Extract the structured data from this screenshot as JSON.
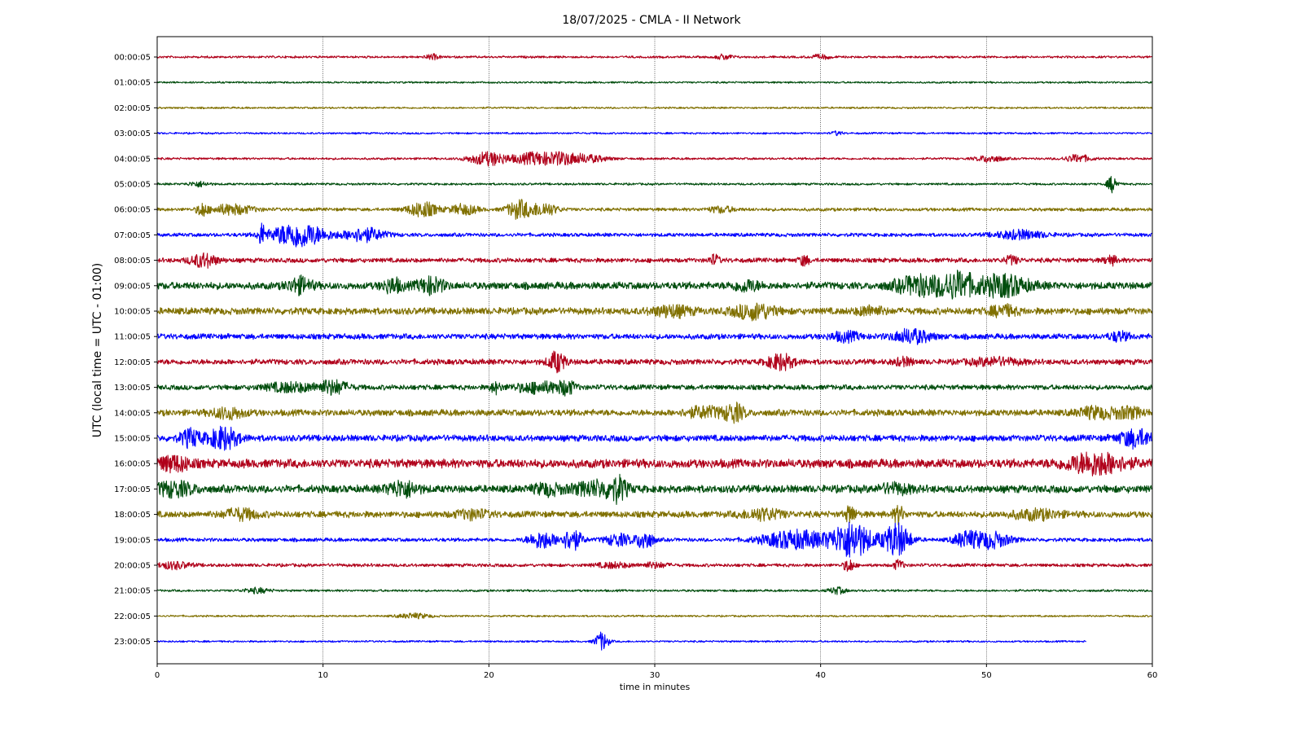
{
  "chart_data": {
    "type": "line",
    "title": "18/07/2025 - CMLA - II Network",
    "xlabel": "time in minutes",
    "ylabel": "UTC (local time = UTC - 01:00)",
    "xlim": [
      0,
      60
    ],
    "xticks": [
      0,
      10,
      20,
      30,
      40,
      50,
      60
    ],
    "grid_x": true,
    "grid_y": false,
    "row_labels": [
      "00:00:05",
      "01:00:05",
      "02:00:05",
      "03:00:05",
      "04:00:05",
      "05:00:05",
      "06:00:05",
      "07:00:05",
      "08:00:05",
      "09:00:05",
      "10:00:05",
      "11:00:05",
      "12:00:05",
      "13:00:05",
      "14:00:05",
      "15:00:05",
      "16:00:05",
      "17:00:05",
      "18:00:05",
      "19:00:05",
      "20:00:05",
      "21:00:05",
      "22:00:05",
      "23:00:05"
    ],
    "row_colors": [
      "#b0001a",
      "#004d0d",
      "#807000",
      "#0000ff"
    ],
    "last_row_end_minute": 56,
    "series": [
      {
        "label": "00:00:05",
        "base_amplitude": 0.12,
        "events": [
          {
            "t": 16.6,
            "amp": 0.3,
            "dur": 0.4
          },
          {
            "t": 34.2,
            "amp": 0.3,
            "dur": 0.5
          },
          {
            "t": 40.0,
            "amp": 0.25,
            "dur": 0.6
          }
        ]
      },
      {
        "label": "01:00:05",
        "base_amplitude": 0.1,
        "events": []
      },
      {
        "label": "02:00:05",
        "base_amplitude": 0.1,
        "events": []
      },
      {
        "label": "03:00:05",
        "base_amplitude": 0.1,
        "events": [
          {
            "t": 41.0,
            "amp": 0.25,
            "dur": 0.3
          }
        ]
      },
      {
        "label": "04:00:05",
        "base_amplitude": 0.12,
        "events": [
          {
            "t": 20.0,
            "amp": 0.8,
            "dur": 1.2
          },
          {
            "t": 22.5,
            "amp": 0.6,
            "dur": 1.0
          },
          {
            "t": 24.2,
            "amp": 0.7,
            "dur": 1.2
          },
          {
            "t": 26.0,
            "amp": 0.4,
            "dur": 1.2
          },
          {
            "t": 50.2,
            "amp": 0.4,
            "dur": 0.8
          },
          {
            "t": 55.5,
            "amp": 0.45,
            "dur": 0.8
          }
        ]
      },
      {
        "label": "05:00:05",
        "base_amplitude": 0.12,
        "events": [
          {
            "t": 2.5,
            "amp": 0.3,
            "dur": 0.6
          },
          {
            "t": 57.6,
            "amp": 1.0,
            "dur": 0.3
          }
        ]
      },
      {
        "label": "06:00:05",
        "base_amplitude": 0.18,
        "events": [
          {
            "t": 2.7,
            "amp": 0.8,
            "dur": 0.3
          },
          {
            "t": 4.5,
            "amp": 0.6,
            "dur": 1.3
          },
          {
            "t": 16.0,
            "amp": 0.9,
            "dur": 0.9
          },
          {
            "t": 18.5,
            "amp": 0.6,
            "dur": 0.8
          },
          {
            "t": 21.8,
            "amp": 1.1,
            "dur": 0.7
          },
          {
            "t": 23.3,
            "amp": 0.8,
            "dur": 0.8
          },
          {
            "t": 34.0,
            "amp": 0.35,
            "dur": 0.8
          }
        ]
      },
      {
        "label": "07:00:05",
        "base_amplitude": 0.2,
        "events": [
          {
            "t": 6.3,
            "amp": 1.2,
            "dur": 0.2
          },
          {
            "t": 8.5,
            "amp": 1.5,
            "dur": 1.6
          },
          {
            "t": 12.5,
            "amp": 0.8,
            "dur": 1.2
          },
          {
            "t": 52.0,
            "amp": 0.5,
            "dur": 1.5
          }
        ]
      },
      {
        "label": "08:00:05",
        "base_amplitude": 0.25,
        "events": [
          {
            "t": 2.8,
            "amp": 0.8,
            "dur": 0.8
          },
          {
            "t": 33.6,
            "amp": 0.6,
            "dur": 0.3
          },
          {
            "t": 39.0,
            "amp": 0.6,
            "dur": 0.3
          },
          {
            "t": 51.5,
            "amp": 0.5,
            "dur": 0.4
          },
          {
            "t": 57.5,
            "amp": 0.5,
            "dur": 0.4
          }
        ]
      },
      {
        "label": "09:00:05",
        "base_amplitude": 0.4,
        "events": [
          {
            "t": 8.6,
            "amp": 0.9,
            "dur": 0.7
          },
          {
            "t": 14.2,
            "amp": 0.8,
            "dur": 0.6
          },
          {
            "t": 16.5,
            "amp": 0.9,
            "dur": 0.8
          },
          {
            "t": 35.5,
            "amp": 0.6,
            "dur": 0.8
          },
          {
            "t": 46.0,
            "amp": 1.1,
            "dur": 1.5
          },
          {
            "t": 48.3,
            "amp": 1.4,
            "dur": 1.1
          },
          {
            "t": 51.0,
            "amp": 1.2,
            "dur": 1.5
          }
        ]
      },
      {
        "label": "10:00:05",
        "base_amplitude": 0.38,
        "events": [
          {
            "t": 31.0,
            "amp": 0.6,
            "dur": 1.2
          },
          {
            "t": 36.0,
            "amp": 0.9,
            "dur": 1.2
          },
          {
            "t": 43.0,
            "amp": 0.5,
            "dur": 0.8
          },
          {
            "t": 51.0,
            "amp": 0.6,
            "dur": 0.8
          }
        ]
      },
      {
        "label": "11:00:05",
        "base_amplitude": 0.3,
        "events": [
          {
            "t": 41.5,
            "amp": 0.5,
            "dur": 0.9
          },
          {
            "t": 45.5,
            "amp": 0.8,
            "dur": 1.1
          },
          {
            "t": 58.0,
            "amp": 0.5,
            "dur": 0.6
          }
        ]
      },
      {
        "label": "12:00:05",
        "base_amplitude": 0.3,
        "events": [
          {
            "t": 24.1,
            "amp": 1.2,
            "dur": 0.5
          },
          {
            "t": 37.6,
            "amp": 0.9,
            "dur": 0.8
          },
          {
            "t": 45.0,
            "amp": 0.4,
            "dur": 0.6
          },
          {
            "t": 50.5,
            "amp": 0.4,
            "dur": 1.5
          }
        ]
      },
      {
        "label": "13:00:05",
        "base_amplitude": 0.28,
        "events": [
          {
            "t": 8.0,
            "amp": 0.5,
            "dur": 1.5
          },
          {
            "t": 10.6,
            "amp": 0.8,
            "dur": 0.9
          },
          {
            "t": 20.4,
            "amp": 0.6,
            "dur": 0.3
          },
          {
            "t": 23.0,
            "amp": 0.6,
            "dur": 1.5
          },
          {
            "t": 24.7,
            "amp": 0.7,
            "dur": 0.5
          }
        ]
      },
      {
        "label": "14:00:05",
        "base_amplitude": 0.35,
        "events": [
          {
            "t": 4.3,
            "amp": 0.6,
            "dur": 1.0
          },
          {
            "t": 33.0,
            "amp": 0.6,
            "dur": 1.2
          },
          {
            "t": 34.8,
            "amp": 1.0,
            "dur": 0.6
          },
          {
            "t": 56.5,
            "amp": 0.6,
            "dur": 1.0
          },
          {
            "t": 58.5,
            "amp": 0.6,
            "dur": 1.0
          }
        ]
      },
      {
        "label": "15:00:05",
        "base_amplitude": 0.35,
        "events": [
          {
            "t": 2.0,
            "amp": 1.0,
            "dur": 0.6
          },
          {
            "t": 4.0,
            "amp": 1.3,
            "dur": 0.9
          },
          {
            "t": 59.0,
            "amp": 1.0,
            "dur": 1.0
          }
        ]
      },
      {
        "label": "16:00:05",
        "base_amplitude": 0.48,
        "events": [
          {
            "t": 1.0,
            "amp": 0.8,
            "dur": 1.0
          },
          {
            "t": 56.6,
            "amp": 1.2,
            "dur": 1.8
          }
        ]
      },
      {
        "label": "17:00:05",
        "base_amplitude": 0.42,
        "events": [
          {
            "t": 1.0,
            "amp": 0.8,
            "dur": 1.2
          },
          {
            "t": 14.8,
            "amp": 0.9,
            "dur": 0.9
          },
          {
            "t": 23.5,
            "amp": 0.6,
            "dur": 0.8
          },
          {
            "t": 26.5,
            "amp": 0.8,
            "dur": 1.5
          },
          {
            "t": 27.8,
            "amp": 1.1,
            "dur": 0.5
          },
          {
            "t": 44.5,
            "amp": 0.5,
            "dur": 1.0
          }
        ]
      },
      {
        "label": "18:00:05",
        "base_amplitude": 0.35,
        "events": [
          {
            "t": 5.0,
            "amp": 0.6,
            "dur": 1.0
          },
          {
            "t": 19.0,
            "amp": 0.5,
            "dur": 1.0
          },
          {
            "t": 36.5,
            "amp": 0.6,
            "dur": 1.2
          },
          {
            "t": 41.8,
            "amp": 1.0,
            "dur": 0.3
          },
          {
            "t": 44.7,
            "amp": 1.0,
            "dur": 0.3
          },
          {
            "t": 53.0,
            "amp": 0.5,
            "dur": 1.5
          }
        ]
      },
      {
        "label": "19:00:05",
        "base_amplitude": 0.2,
        "events": [
          {
            "t": 23.2,
            "amp": 1.0,
            "dur": 0.8
          },
          {
            "t": 25.0,
            "amp": 1.3,
            "dur": 0.6
          },
          {
            "t": 27.8,
            "amp": 0.7,
            "dur": 0.8
          },
          {
            "t": 29.4,
            "amp": 1.2,
            "dur": 0.5
          },
          {
            "t": 38.5,
            "amp": 1.1,
            "dur": 2.0
          },
          {
            "t": 41.9,
            "amp": 2.2,
            "dur": 1.2
          },
          {
            "t": 44.6,
            "amp": 2.0,
            "dur": 0.8
          },
          {
            "t": 48.7,
            "amp": 0.8,
            "dur": 0.7
          },
          {
            "t": 50.2,
            "amp": 1.0,
            "dur": 1.2
          }
        ]
      },
      {
        "label": "20:00:05",
        "base_amplitude": 0.18,
        "events": [
          {
            "t": 1.0,
            "amp": 0.4,
            "dur": 1.0
          },
          {
            "t": 27.5,
            "amp": 0.3,
            "dur": 1.0
          },
          {
            "t": 30.0,
            "amp": 0.3,
            "dur": 0.8
          },
          {
            "t": 41.7,
            "amp": 0.8,
            "dur": 0.3
          },
          {
            "t": 44.7,
            "amp": 0.6,
            "dur": 0.3
          }
        ]
      },
      {
        "label": "21:00:05",
        "base_amplitude": 0.12,
        "events": [
          {
            "t": 6.0,
            "amp": 0.3,
            "dur": 0.8
          },
          {
            "t": 41.0,
            "amp": 0.4,
            "dur": 0.5
          }
        ]
      },
      {
        "label": "22:00:05",
        "base_amplitude": 0.1,
        "events": [
          {
            "t": 15.5,
            "amp": 0.3,
            "dur": 1.0
          }
        ]
      },
      {
        "label": "23:00:05",
        "base_amplitude": 0.1,
        "events": [
          {
            "t": 26.8,
            "amp": 1.1,
            "dur": 0.4
          }
        ]
      }
    ]
  }
}
